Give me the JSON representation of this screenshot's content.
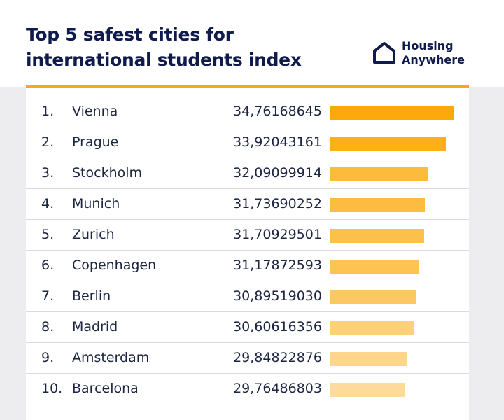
{
  "header": {
    "title_line1": "Top 5 safest cities for",
    "title_line2": "international students index",
    "logo_line1": "Housing",
    "logo_line2": "Anywhere"
  },
  "colors": {
    "accent": "#f6a81c",
    "navy": "#101b4d",
    "bar_shades": [
      "#fca90b",
      "#fdb018",
      "#fdbb3b",
      "#fdbc40",
      "#fdc04a",
      "#fdc353",
      "#fdc863",
      "#fed078",
      "#fed58b",
      "#fedb9b"
    ]
  },
  "chart_data": {
    "type": "bar",
    "orientation": "horizontal",
    "title": "Top 5 safest cities for international students index",
    "xlim": [
      22,
      35.5
    ],
    "categories": [
      "Vienna",
      "Prague",
      "Stockholm",
      "Munich",
      "Zurich",
      "Copenhagen",
      "Berlin",
      "Madrid",
      "Amsterdam",
      "Barcelona"
    ],
    "ranks": [
      "1.",
      "2.",
      "3.",
      "4.",
      "5.",
      "6.",
      "7.",
      "8.",
      "9.",
      "10."
    ],
    "value_labels": [
      "34,76168645",
      "33,92043161",
      "32,09099914",
      "31,73690252",
      "31,70929501",
      "31,17872593",
      "30,89519030",
      "30,60616356",
      "29,84822876",
      "29,76486803"
    ],
    "values": [
      34.76168645,
      33.92043161,
      32.09099914,
      31.73690252,
      31.70929501,
      31.17872593,
      30.8951903,
      30.60616356,
      29.84822876,
      29.76486803
    ]
  }
}
